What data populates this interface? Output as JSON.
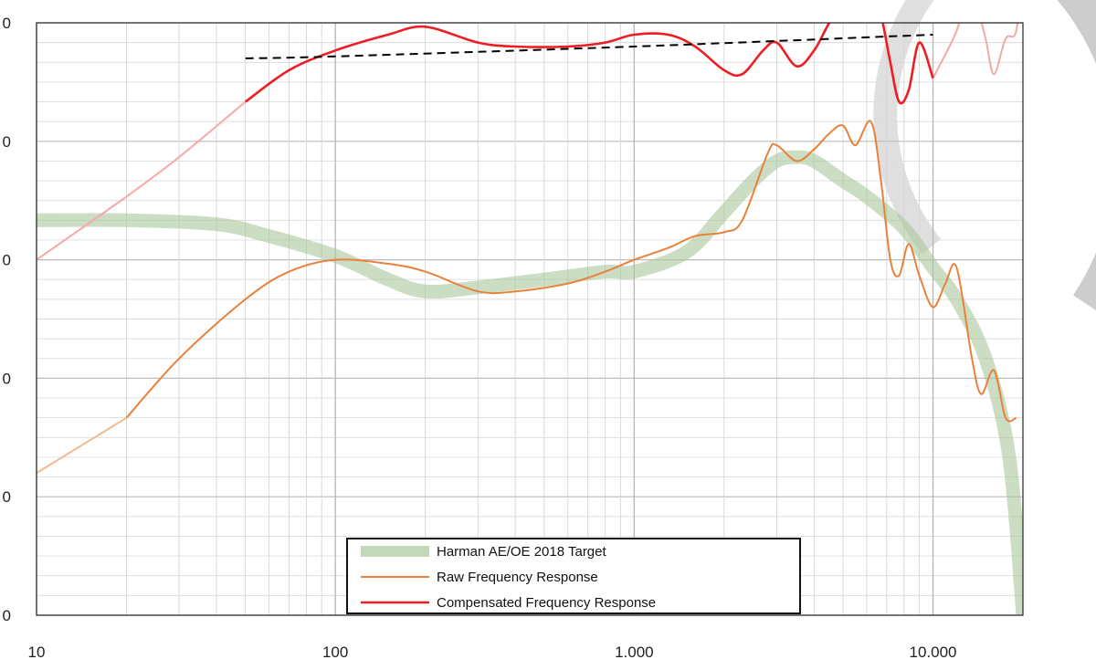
{
  "chart_data": {
    "type": "line",
    "x_scale": "log",
    "xlim": [
      10,
      20000
    ],
    "ylim": [
      -20,
      130
    ],
    "grid": true,
    "legend_position": "bottom-center",
    "x_tick_labels": [
      "10",
      "100",
      "1.000",
      "10.000"
    ],
    "x_tick_values": [
      10,
      100,
      1000,
      10000
    ],
    "y_tick_labels": [
      "0",
      "0",
      "0",
      "0",
      "0",
      "0"
    ],
    "colors": {
      "target": "#a9c79a",
      "raw": "#e8823a",
      "compensated": "#ee1c23",
      "trend": "#000000"
    },
    "series": [
      {
        "name": "Harman AE/OE 2018 Target",
        "key": "target",
        "points": [
          [
            10,
            80
          ],
          [
            20,
            80
          ],
          [
            40,
            79
          ],
          [
            60,
            76
          ],
          [
            100,
            71
          ],
          [
            150,
            65
          ],
          [
            200,
            62
          ],
          [
            300,
            63
          ],
          [
            500,
            65
          ],
          [
            800,
            67
          ],
          [
            1000,
            67
          ],
          [
            1500,
            72
          ],
          [
            2000,
            82
          ],
          [
            2500,
            90
          ],
          [
            3000,
            95
          ],
          [
            3500,
            96
          ],
          [
            4000,
            95
          ],
          [
            5000,
            90
          ],
          [
            6000,
            86
          ],
          [
            8000,
            78
          ],
          [
            10000,
            68
          ],
          [
            12000,
            60
          ],
          [
            15000,
            45
          ],
          [
            18000,
            20
          ],
          [
            20000,
            -20
          ]
        ]
      },
      {
        "name": "Raw Frequency Response",
        "key": "raw",
        "points": [
          [
            10,
            16
          ],
          [
            20,
            30
          ],
          [
            30,
            45
          ],
          [
            50,
            60
          ],
          [
            70,
            67
          ],
          [
            100,
            70
          ],
          [
            150,
            69
          ],
          [
            200,
            67
          ],
          [
            300,
            62
          ],
          [
            400,
            62
          ],
          [
            600,
            64
          ],
          [
            800,
            67
          ],
          [
            1000,
            70
          ],
          [
            1300,
            73
          ],
          [
            1600,
            76
          ],
          [
            2000,
            77
          ],
          [
            2300,
            80
          ],
          [
            2800,
            97
          ],
          [
            3000,
            99
          ],
          [
            3500,
            95
          ],
          [
            4000,
            98
          ],
          [
            4500,
            102
          ],
          [
            5000,
            104
          ],
          [
            5500,
            99
          ],
          [
            6200,
            105
          ],
          [
            6700,
            90
          ],
          [
            7200,
            70
          ],
          [
            7700,
            66
          ],
          [
            8300,
            74
          ],
          [
            9000,
            66
          ],
          [
            10000,
            58
          ],
          [
            11000,
            64
          ],
          [
            12000,
            68
          ],
          [
            13500,
            45
          ],
          [
            14500,
            36
          ],
          [
            16000,
            42
          ],
          [
            17500,
            30
          ],
          [
            19000,
            30
          ]
        ]
      },
      {
        "name": "Compensated Frequency Response",
        "key": "compensated",
        "points": [
          [
            10,
            70
          ],
          [
            20,
            86
          ],
          [
            30,
            96
          ],
          [
            50,
            110
          ],
          [
            70,
            118
          ],
          [
            100,
            123
          ],
          [
            150,
            127
          ],
          [
            200,
            129
          ],
          [
            300,
            125
          ],
          [
            400,
            124
          ],
          [
            600,
            124
          ],
          [
            800,
            125
          ],
          [
            1000,
            127
          ],
          [
            1300,
            127
          ],
          [
            1600,
            124
          ],
          [
            2000,
            118
          ],
          [
            2300,
            117
          ],
          [
            2700,
            123
          ],
          [
            3000,
            125
          ],
          [
            3500,
            119
          ],
          [
            4000,
            123
          ],
          [
            4500,
            130
          ],
          [
            5000,
            134
          ],
          [
            5500,
            131
          ],
          [
            6200,
            139
          ],
          [
            6700,
            132
          ],
          [
            7200,
            120
          ],
          [
            7700,
            110
          ],
          [
            8300,
            113
          ],
          [
            9000,
            125
          ],
          [
            10000,
            116
          ],
          [
            11000,
            122
          ],
          [
            12000,
            128
          ],
          [
            13000,
            136
          ],
          [
            14000,
            134
          ],
          [
            15000,
            126
          ],
          [
            16000,
            117
          ],
          [
            17500,
            126
          ],
          [
            19000,
            128
          ],
          [
            20000,
            145
          ]
        ]
      },
      {
        "name": "",
        "key": "trend",
        "dashed": true,
        "points": [
          [
            50,
            121
          ],
          [
            100,
            121.5
          ],
          [
            1000,
            124
          ],
          [
            10000,
            127
          ]
        ]
      }
    ]
  }
}
